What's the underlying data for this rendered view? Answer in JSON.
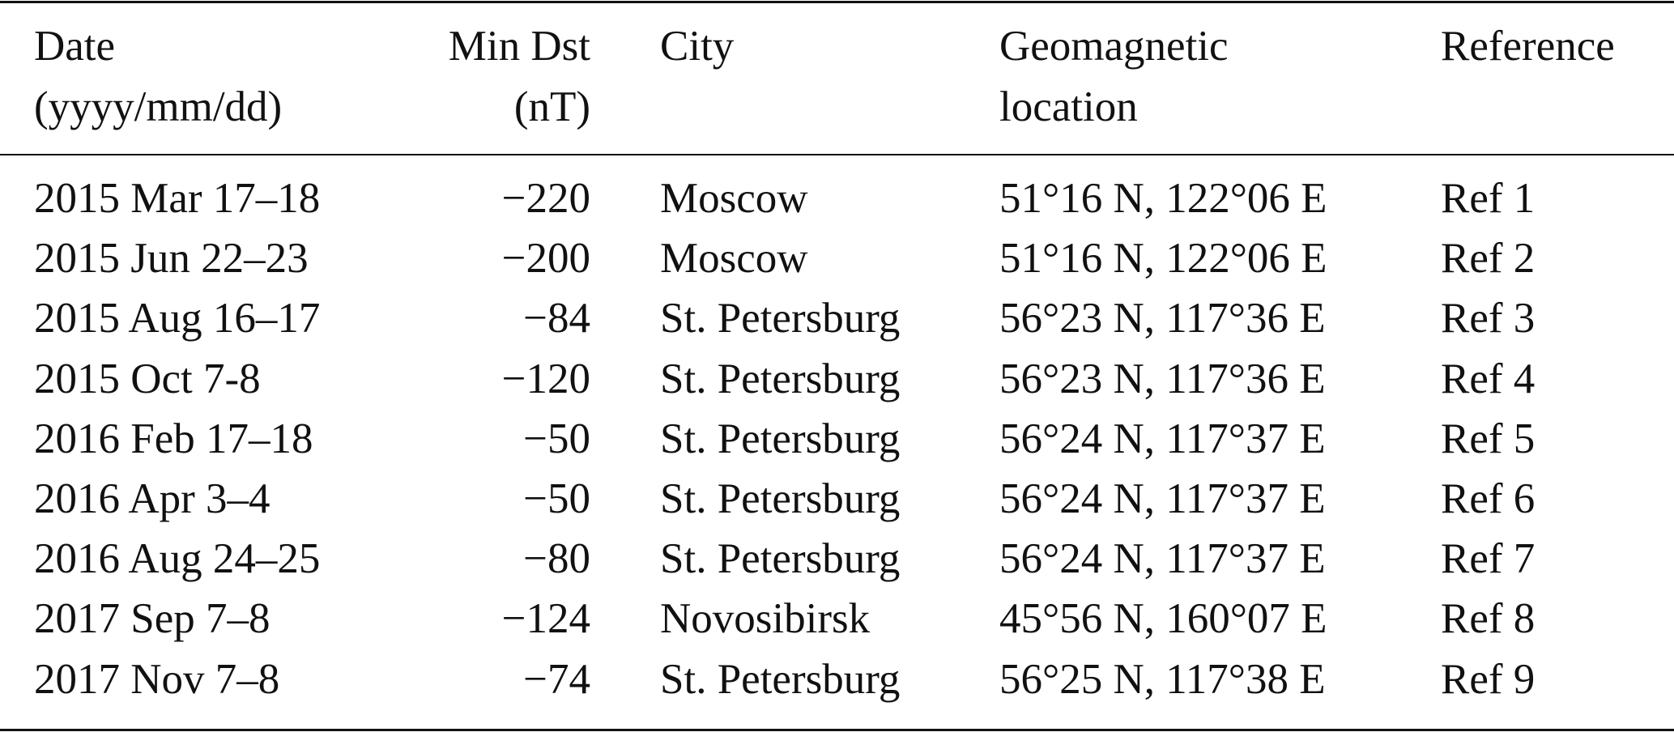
{
  "table": {
    "header": [
      [
        "Date",
        "(yyyy/mm/dd)"
      ],
      [
        "Min Dst",
        "(nT)"
      ],
      [
        "City"
      ],
      [
        "Geomagnetic",
        "location"
      ],
      [
        "Reference"
      ]
    ],
    "rows": [
      [
        "2015 Mar 17–18",
        "−220",
        "Moscow",
        "51°16 N, 122°06 E",
        "Ref 1"
      ],
      [
        "2015 Jun 22–23",
        "−200",
        "Moscow",
        "51°16 N, 122°06 E",
        "Ref 2"
      ],
      [
        "2015 Aug 16–17",
        "−84",
        "St. Petersburg",
        "56°23 N, 117°36 E",
        "Ref 3"
      ],
      [
        "2015 Oct 7-8",
        "−120",
        "St. Petersburg",
        "56°23 N, 117°36 E",
        "Ref 4"
      ],
      [
        "2016 Feb 17–18",
        "−50",
        "St. Petersburg",
        "56°24 N, 117°37 E",
        "Ref 5"
      ],
      [
        "2016 Apr 3–4",
        "−50",
        "St. Petersburg",
        "56°24 N, 117°37 E",
        "Ref 6"
      ],
      [
        "2016 Aug 24–25",
        "−80",
        "St. Petersburg",
        "56°24 N, 117°37 E",
        "Ref 7"
      ],
      [
        "2017 Sep 7–8",
        "−124",
        "Novosibirsk",
        "45°56 N, 160°07 E",
        "Ref 8"
      ],
      [
        "2017 Nov 7–8",
        "−74",
        "St. Petersburg",
        "56°25 N, 117°38 E",
        "Ref 9"
      ]
    ]
  }
}
